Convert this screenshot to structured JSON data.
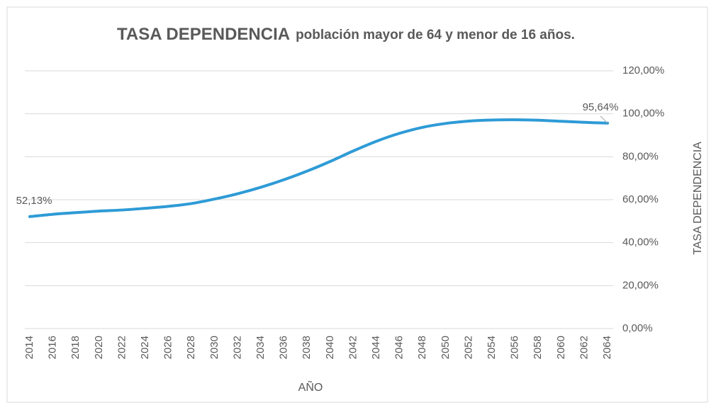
{
  "chart_data": {
    "type": "line",
    "title": "TASA DEPENDENCIA",
    "subtitle": "población mayor de 64 y menor de 16 años.",
    "x_label": "AÑO",
    "y_label": "TASA DEPENDENCIA",
    "x": [
      2014,
      2016,
      2018,
      2020,
      2022,
      2024,
      2026,
      2028,
      2030,
      2032,
      2034,
      2036,
      2038,
      2040,
      2042,
      2044,
      2046,
      2048,
      2050,
      2052,
      2054,
      2056,
      2058,
      2060,
      2062,
      2064
    ],
    "xlim": [
      2014,
      2064
    ],
    "series": [
      {
        "name": "TASA DEPENDENCIA",
        "color": "#2e9bd6",
        "values": [
          52.13,
          53.2,
          54.0,
          54.7,
          55.2,
          56.0,
          56.9,
          58.2,
          60.3,
          62.8,
          65.8,
          69.3,
          73.3,
          77.8,
          82.7,
          87.2,
          90.9,
          93.7,
          95.5,
          96.6,
          97.1,
          97.2,
          97.0,
          96.5,
          96.0,
          95.64
        ],
        "value_labels": [
          "52,13%",
          null,
          null,
          null,
          null,
          null,
          null,
          null,
          null,
          null,
          null,
          null,
          null,
          null,
          null,
          null,
          null,
          null,
          null,
          null,
          null,
          null,
          null,
          null,
          null,
          "95,64%"
        ]
      }
    ],
    "ylim": [
      0,
      120
    ],
    "yticks": [
      {
        "value": 0,
        "label": "0,00%"
      },
      {
        "value": 20,
        "label": "20,00%"
      },
      {
        "value": 40,
        "label": "40,00%"
      },
      {
        "value": 60,
        "label": "60,00%"
      },
      {
        "value": 80,
        "label": "80,00%"
      },
      {
        "value": 100,
        "label": "100,00%"
      },
      {
        "value": 120,
        "label": "120,00%"
      }
    ],
    "grid": true
  }
}
